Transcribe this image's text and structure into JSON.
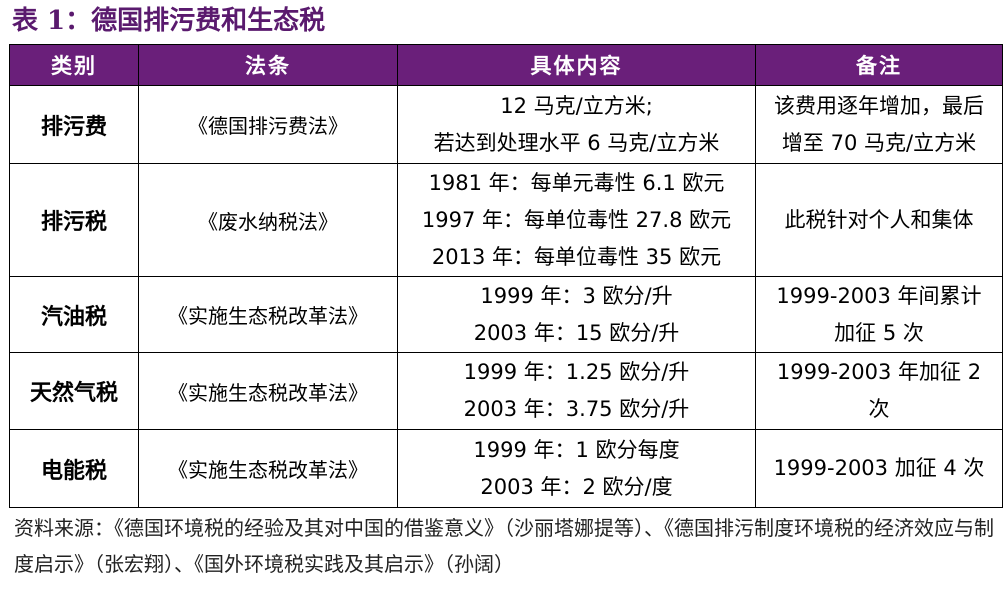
{
  "title": "表 1：德国排污费和生态税",
  "header": {
    "category": "类别",
    "law": "法条",
    "content": "具体内容",
    "note": "备注"
  },
  "rows": [
    {
      "category": "排污费",
      "law": "《德国排污费法》",
      "content": [
        "12 马克/立方米;",
        "若达到处理水平 6 马克/立方米"
      ],
      "note": [
        "该费用逐年增加，最后",
        "增至 70 马克/立方米"
      ]
    },
    {
      "category": "排污税",
      "law": "《废水纳税法》",
      "content": [
        "1981 年：每单元毒性 6.1 欧元",
        "1997 年：每单位毒性 27.8 欧元",
        "2013 年：每单位毒性 35 欧元"
      ],
      "note": [
        "此税针对个人和集体"
      ]
    },
    {
      "category": "汽油税",
      "law": "《实施生态税改革法》",
      "content": [
        "1999 年：3 欧分/升",
        "2003 年：15 欧分/升"
      ],
      "note": [
        "1999-2003 年间累计",
        "加征 5 次"
      ]
    },
    {
      "category": "天然气税",
      "law": "《实施生态税改革法》",
      "content": [
        "1999 年：1.25 欧分/升",
        "2003 年：3.75 欧分/升"
      ],
      "note": [
        "1999-2003 年加征 2",
        "次"
      ]
    },
    {
      "category": "电能税",
      "law": "《实施生态税改革法》",
      "content": [
        "1999 年：1 欧分每度",
        "2003 年：2 欧分/度"
      ],
      "note": [
        "1999-2003 加征 4 次"
      ]
    }
  ],
  "source": "资料来源：《德国环境税的经验及其对中国的借鉴意义》（沙丽塔娜提等）、《德国排污制度环境税的经济效应与制度启示》（张宏翔）、《国外环境税实践及其启示》（孙阔）",
  "colors": {
    "header_bg": "#6a1f7a",
    "title": "#5a1a6e"
  }
}
